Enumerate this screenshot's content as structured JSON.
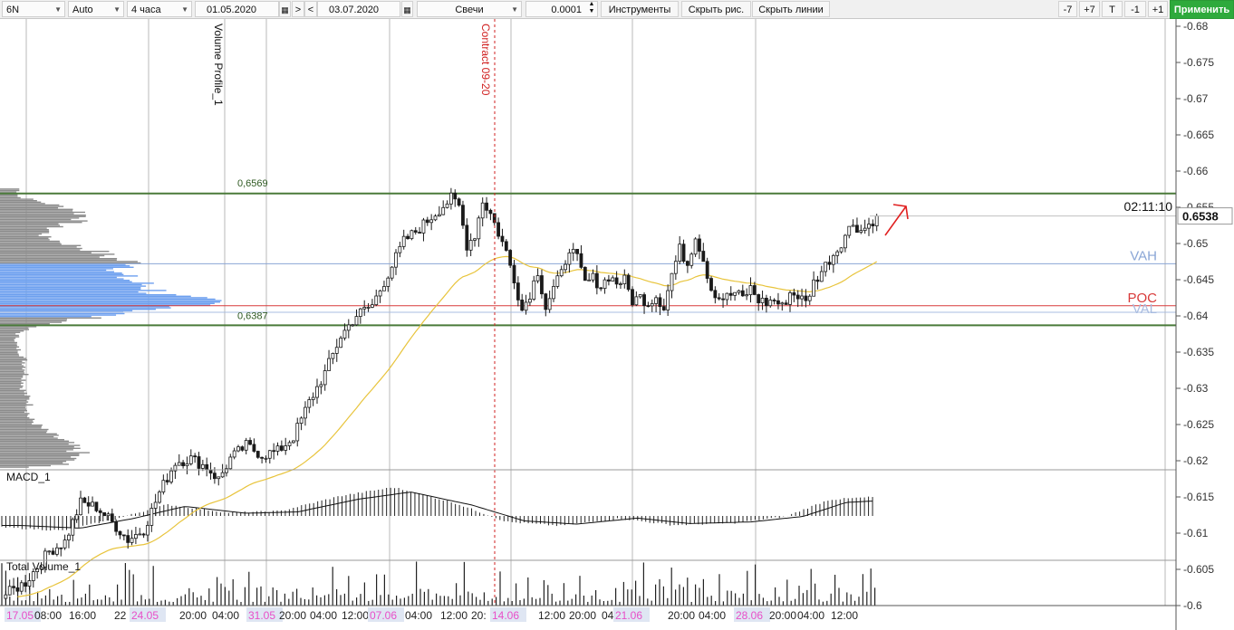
{
  "toolbar": {
    "symbol": "6N",
    "scale_mode": "Auto",
    "timeframe": "4 часа",
    "date_from": "01.05.2020",
    "nav_next": ">",
    "nav_prev": "<",
    "date_to": "03.07.2020",
    "chart_style": "Свечи",
    "tick_size": "0.0001",
    "instruments": "Инструменты",
    "hide_drawings": "Скрыть рис.",
    "hide_lines": "Скрыть линии",
    "minus7": "-7",
    "plus7": "+7",
    "t": "T",
    "minus1": "-1",
    "plus1": "+1",
    "apply": "Применить"
  },
  "overlays": {
    "volume_profile_label": "Volume Profile_1",
    "contract_label": "Contract 09-20",
    "macd_label": "MACD_1",
    "total_volume_label": "Total Volume_1",
    "level_high": "0,6569",
    "level_low": "0,6387",
    "vah": "VAH",
    "poc": "POC",
    "val": "VAL",
    "timer": "02:11:10",
    "last_price": "0.6538"
  },
  "colors": {
    "candle": "#1a1a1a",
    "level_line": "#4a7a3a",
    "vah_line": "#8aa6d6",
    "poc_line": "#d83a3a",
    "val_line": "#a8bce0",
    "ma_line": "#e8c43c",
    "profile_gray": "#8c8c8c",
    "profile_blue": "#6da0ef",
    "contract_line": "#d02020",
    "arrow": "#e02020",
    "date_highlight": "#e84ec8",
    "apply_button": "#2eaa3c"
  },
  "chart_data": {
    "type": "candlestick",
    "instrument": "6N",
    "timeframe": "4 часа",
    "ylim": [
      0.6,
      0.68
    ],
    "y_ticks": [
      "-0.68",
      "-0.675",
      "-0.67",
      "-0.665",
      "-0.66",
      "-0.655",
      "-0.65",
      "-0.645",
      "-0.64",
      "-0.635",
      "-0.63",
      "-0.625",
      "-0.62",
      "-0.615",
      "-0.61",
      "-0.605",
      "-0.6"
    ],
    "x_ticks": [
      {
        "label": "17.05",
        "highlight": true
      },
      {
        "label": "08:00",
        "highlight": false
      },
      {
        "label": "16:00",
        "highlight": false
      },
      {
        "label": "22",
        "highlight": false
      },
      {
        "label": "24.05",
        "highlight": true
      },
      {
        "label": "20:00",
        "highlight": false
      },
      {
        "label": "04:00",
        "highlight": false
      },
      {
        "label": "31.05",
        "highlight": true
      },
      {
        "label": "20:00",
        "highlight": false
      },
      {
        "label": "04:00",
        "highlight": false
      },
      {
        "label": "12:00",
        "highlight": false
      },
      {
        "label": "07.06",
        "highlight": true
      },
      {
        "label": "04:00",
        "highlight": false
      },
      {
        "label": "12:00",
        "highlight": false
      },
      {
        "label": "20:",
        "highlight": false
      },
      {
        "label": "14.06",
        "highlight": true
      },
      {
        "label": "12:00",
        "highlight": false
      },
      {
        "label": "20:00",
        "highlight": false
      },
      {
        "label": "04",
        "highlight": false
      },
      {
        "label": "21.06",
        "highlight": true
      },
      {
        "label": "20:00",
        "highlight": false
      },
      {
        "label": "04:00",
        "highlight": false
      },
      {
        "label": "28.06",
        "highlight": true
      },
      {
        "label": "20:00",
        "highlight": false
      },
      {
        "label": "04:00",
        "highlight": false
      },
      {
        "label": "12:00",
        "highlight": false
      }
    ],
    "levels": {
      "high": 0.6569,
      "low": 0.6387,
      "vah": 0.6472,
      "poc": 0.6414,
      "val": 0.6405
    },
    "last_price": 0.6538,
    "path": [
      [
        0,
        0.6012
      ],
      [
        6,
        0.6032
      ],
      [
        12,
        0.6075
      ],
      [
        16,
        0.6088
      ],
      [
        20,
        0.6142
      ],
      [
        24,
        0.6136
      ],
      [
        28,
        0.6115
      ],
      [
        32,
        0.6091
      ],
      [
        36,
        0.6105
      ],
      [
        40,
        0.6156
      ],
      [
        44,
        0.6198
      ],
      [
        48,
        0.6203
      ],
      [
        52,
        0.6191
      ],
      [
        55,
        0.6174
      ],
      [
        58,
        0.6203
      ],
      [
        62,
        0.6221
      ],
      [
        66,
        0.6208
      ],
      [
        70,
        0.6213
      ],
      [
        74,
        0.6233
      ],
      [
        78,
        0.6281
      ],
      [
        82,
        0.6321
      ],
      [
        86,
        0.6372
      ],
      [
        90,
        0.6401
      ],
      [
        94,
        0.6415
      ],
      [
        98,
        0.6458
      ],
      [
        102,
        0.6503
      ],
      [
        106,
        0.6521
      ],
      [
        110,
        0.6542
      ],
      [
        114,
        0.6562
      ],
      [
        116,
        0.6551
      ],
      [
        118,
        0.6498
      ],
      [
        120,
        0.6512
      ],
      [
        122,
        0.6559
      ],
      [
        124,
        0.6541
      ],
      [
        128,
        0.6488
      ],
      [
        130,
        0.6452
      ],
      [
        132,
        0.6408
      ],
      [
        134,
        0.6431
      ],
      [
        136,
        0.6462
      ],
      [
        138,
        0.6412
      ],
      [
        140,
        0.6438
      ],
      [
        142,
        0.6458
      ],
      [
        144,
        0.6495
      ],
      [
        146,
        0.6478
      ],
      [
        148,
        0.6445
      ],
      [
        150,
        0.6452
      ],
      [
        152,
        0.6441
      ],
      [
        154,
        0.6455
      ],
      [
        156,
        0.6446
      ],
      [
        158,
        0.6449
      ],
      [
        160,
        0.6421
      ],
      [
        162,
        0.6426
      ],
      [
        164,
        0.6418
      ],
      [
        166,
        0.6428
      ],
      [
        168,
        0.6412
      ],
      [
        170,
        0.6458
      ],
      [
        172,
        0.6492
      ],
      [
        174,
        0.6472
      ],
      [
        176,
        0.6512
      ],
      [
        178,
        0.6478
      ],
      [
        180,
        0.6438
      ],
      [
        182,
        0.6425
      ],
      [
        184,
        0.6426
      ],
      [
        186,
        0.6432
      ],
      [
        188,
        0.6425
      ],
      [
        190,
        0.6438
      ],
      [
        192,
        0.6422
      ],
      [
        194,
        0.6418
      ],
      [
        196,
        0.6422
      ],
      [
        198,
        0.6412
      ],
      [
        200,
        0.6432
      ],
      [
        202,
        0.6428
      ],
      [
        204,
        0.6418
      ],
      [
        206,
        0.6446
      ],
      [
        208,
        0.6462
      ],
      [
        210,
        0.6478
      ],
      [
        212,
        0.6492
      ],
      [
        214,
        0.6512
      ],
      [
        216,
        0.6528
      ],
      [
        218,
        0.6518
      ],
      [
        220,
        0.6526
      ],
      [
        222,
        0.6538
      ]
    ],
    "histogram_n": 216,
    "histogram_profile": [
      [
        0.0,
        -0.35
      ],
      [
        0.07,
        -0.45
      ],
      [
        0.13,
        -0.1
      ],
      [
        0.19,
        0.35
      ],
      [
        0.26,
        0.1
      ],
      [
        0.32,
        0.15
      ],
      [
        0.39,
        0.62
      ],
      [
        0.45,
        0.88
      ],
      [
        0.52,
        0.4
      ],
      [
        0.58,
        -0.18
      ],
      [
        0.64,
        -0.3
      ],
      [
        0.71,
        -0.08
      ],
      [
        0.77,
        -0.28
      ],
      [
        0.84,
        -0.22
      ],
      [
        0.9,
        -0.02
      ],
      [
        0.95,
        0.5
      ],
      [
        1.0,
        0.58
      ]
    ],
    "volume_n": 220,
    "profile": [
      [
        0.6575,
        22
      ],
      [
        0.6565,
        20
      ],
      [
        0.6555,
        55
      ],
      [
        0.6545,
        90
      ],
      [
        0.6535,
        100
      ],
      [
        0.6522,
        60
      ],
      [
        0.651,
        48
      ],
      [
        0.65,
        75
      ],
      [
        0.649,
        108
      ],
      [
        0.648,
        125
      ],
      [
        0.647,
        165
      ],
      [
        0.646,
        130
      ],
      [
        0.645,
        145
      ],
      [
        0.644,
        172
      ],
      [
        0.643,
        180
      ],
      [
        0.642,
        232
      ],
      [
        0.6414,
        236
      ],
      [
        0.6405,
        145
      ],
      [
        0.6395,
        90
      ],
      [
        0.6385,
        36
      ],
      [
        0.6375,
        20
      ],
      [
        0.636,
        18
      ],
      [
        0.634,
        28
      ],
      [
        0.632,
        30
      ],
      [
        0.63,
        26
      ],
      [
        0.628,
        34
      ],
      [
        0.626,
        32
      ],
      [
        0.624,
        52
      ],
      [
        0.6225,
        75
      ],
      [
        0.621,
        90
      ],
      [
        0.6195,
        70
      ],
      [
        0.619,
        30
      ]
    ]
  }
}
